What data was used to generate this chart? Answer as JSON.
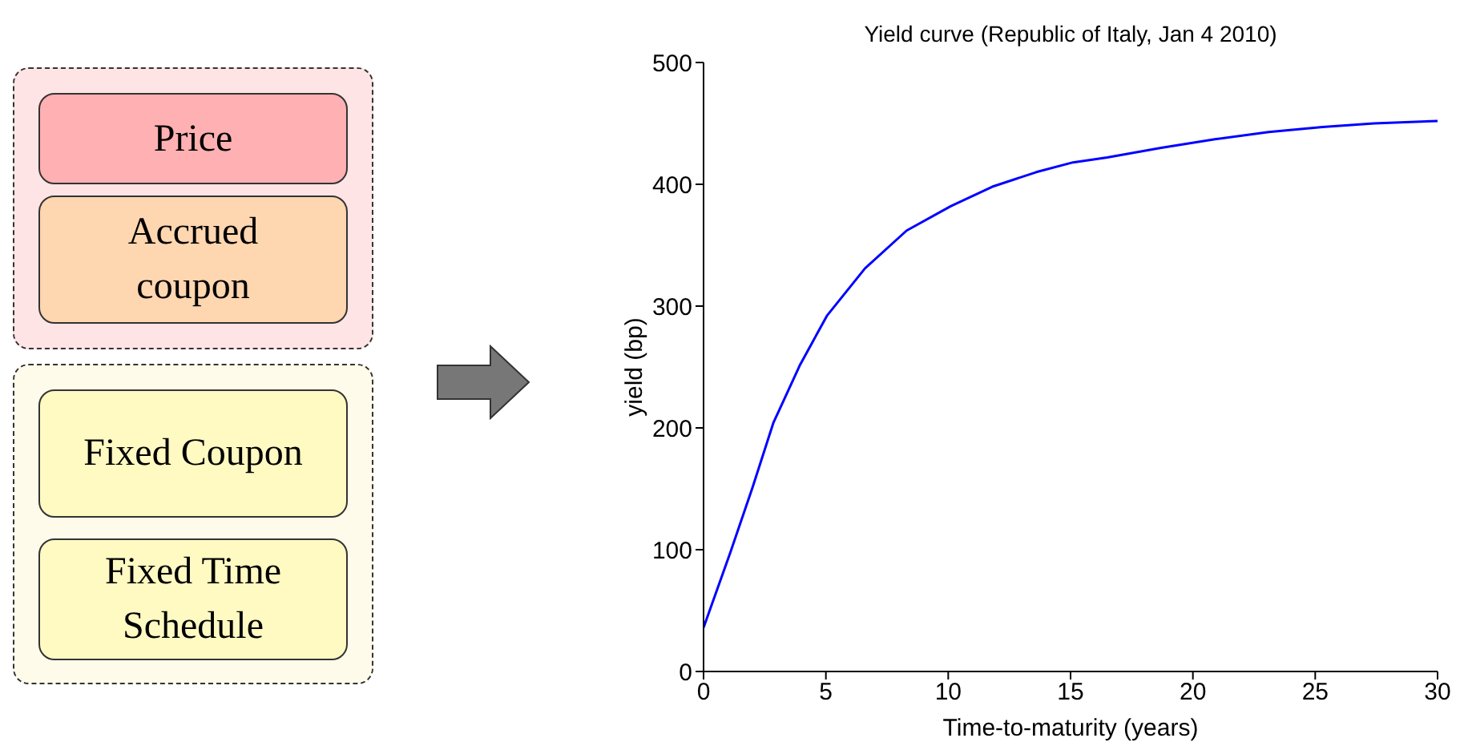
{
  "chart_data": [
    {
      "type": "other",
      "annotations": [
        "Price",
        "Accrued coupon",
        "Fixed Coupon",
        "Fixed Time Schedule"
      ],
      "colors": [
        "#ffb0b2",
        "#fed6b0",
        "#fff9c2",
        "#fff9c2"
      ]
    },
    {
      "type": "line",
      "title": "Yield curve (Republic of Italy, Jan 4 2010)",
      "xlabel": "Time-to-maturity (years)",
      "ylabel": "yield (bp)",
      "x": [
        0,
        1.1,
        2.0,
        2.85,
        3.95,
        5.04,
        6.6,
        8.3,
        10.1,
        11.8,
        13.6,
        15.1,
        16.5,
        18.7,
        20.9,
        23.1,
        25.3,
        27.4,
        30
      ],
      "series": [
        {
          "color": "#0000ff",
          "values": [
            36,
            98,
            151,
            204,
            252,
            292,
            331,
            362,
            382,
            398,
            410,
            418,
            422,
            430,
            437,
            443,
            447,
            450,
            452
          ]
        }
      ],
      "xlim": [
        0,
        30
      ],
      "xticks": [
        0,
        5,
        10,
        15,
        20,
        25,
        30
      ],
      "ylim": [
        0,
        500
      ],
      "yticks": [
        0,
        100,
        200,
        300,
        400,
        500
      ],
      "grid": false,
      "legend": false,
      "marker": "none",
      "line_style": "solid"
    }
  ]
}
